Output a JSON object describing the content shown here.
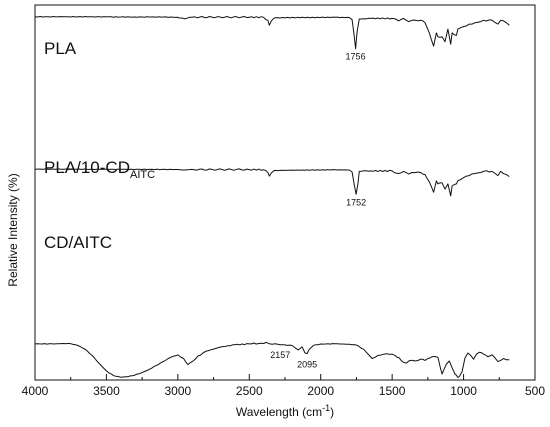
{
  "chart_data": {
    "type": "line",
    "title": "",
    "xlabel": "Wavelength (cm",
    "xlabel_sup": "-1",
    "xlabel_tail": ")",
    "ylabel": "Relative Intensity (%)",
    "xlim": [
      4000,
      500
    ],
    "x_reversed": true,
    "xticks": [
      "4000",
      "3500",
      "3000",
      "2500",
      "2000",
      "1500",
      "1000",
      "500"
    ],
    "ylim": [
      0,
      100
    ],
    "y_ticks_shown": false,
    "grid": false,
    "series": [
      {
        "name": "PLA",
        "name_sub": "",
        "label_position": "top-left",
        "points": [
          [
            4000,
            97.8
          ],
          [
            3800,
            97.8
          ],
          [
            3700,
            97.8
          ],
          [
            3600,
            97.8
          ],
          [
            3500,
            97.7
          ],
          [
            3400,
            97.6
          ],
          [
            3300,
            97.6
          ],
          [
            3200,
            97.6
          ],
          [
            3100,
            97.6
          ],
          [
            3000,
            97.4
          ],
          [
            2995,
            96.9
          ],
          [
            2950,
            96.1
          ],
          [
            2920,
            97.4
          ],
          [
            2900,
            97.5
          ],
          [
            2500,
            97.5
          ],
          [
            2400,
            97.4
          ],
          [
            2370,
            95
          ],
          [
            2360,
            91
          ],
          [
            2345,
            94.5
          ],
          [
            2330,
            96.5
          ],
          [
            2320,
            97
          ],
          [
            1900,
            97.4
          ],
          [
            1800,
            97.2
          ],
          [
            1780,
            95.5
          ],
          [
            1765,
            82
          ],
          [
            1756,
            72.5
          ],
          [
            1745,
            86
          ],
          [
            1730,
            96
          ],
          [
            1700,
            96.2
          ],
          [
            1650,
            96.5
          ],
          [
            1500,
            96.5
          ],
          [
            1455,
            94.5
          ],
          [
            1420,
            96.5
          ],
          [
            1385,
            94
          ],
          [
            1360,
            95
          ],
          [
            1300,
            95
          ],
          [
            1270,
            93
          ],
          [
            1240,
            85
          ],
          [
            1210,
            74.5
          ],
          [
            1190,
            85
          ],
          [
            1180,
            82
          ],
          [
            1150,
            82
          ],
          [
            1130,
            78
          ],
          [
            1110,
            88
          ],
          [
            1090,
            76
          ],
          [
            1080,
            85
          ],
          [
            1050,
            83
          ],
          [
            1040,
            88
          ],
          [
            1000,
            90
          ],
          [
            960,
            92
          ],
          [
            920,
            93
          ],
          [
            880,
            94
          ],
          [
            860,
            95
          ],
          [
            800,
            95
          ],
          [
            760,
            92
          ],
          [
            740,
            95
          ],
          [
            700,
            93
          ],
          [
            680,
            91
          ]
        ]
      },
      {
        "name": "PLA/10-CD",
        "name_sub": "AITC",
        "label_position": "middle-left",
        "points": [
          [
            4000,
            66.2
          ],
          [
            3800,
            66.2
          ],
          [
            3600,
            66.1
          ],
          [
            3400,
            66
          ],
          [
            3200,
            66
          ],
          [
            3000,
            65.9
          ],
          [
            2950,
            65.4
          ],
          [
            2920,
            65.8
          ],
          [
            2500,
            65.8
          ],
          [
            2400,
            65.6
          ],
          [
            2370,
            63
          ],
          [
            2360,
            59.5
          ],
          [
            2345,
            62.5
          ],
          [
            2330,
            64.5
          ],
          [
            2320,
            65
          ],
          [
            1900,
            65.6
          ],
          [
            1800,
            65.4
          ],
          [
            1780,
            63.5
          ],
          [
            1765,
            51
          ],
          [
            1752,
            42
          ],
          [
            1740,
            52
          ],
          [
            1730,
            64
          ],
          [
            1700,
            64.5
          ],
          [
            1650,
            64.5
          ],
          [
            1500,
            64.5
          ],
          [
            1455,
            62
          ],
          [
            1420,
            64
          ],
          [
            1385,
            61.5
          ],
          [
            1360,
            63
          ],
          [
            1300,
            63
          ],
          [
            1270,
            61
          ],
          [
            1240,
            54
          ],
          [
            1210,
            44
          ],
          [
            1190,
            55
          ],
          [
            1180,
            52
          ],
          [
            1150,
            53
          ],
          [
            1130,
            47
          ],
          [
            1110,
            52
          ],
          [
            1090,
            40.5
          ],
          [
            1080,
            50
          ],
          [
            1050,
            52
          ],
          [
            1040,
            55
          ],
          [
            1000,
            58
          ],
          [
            960,
            60
          ],
          [
            920,
            62
          ],
          [
            880,
            63
          ],
          [
            860,
            64
          ],
          [
            800,
            64
          ],
          [
            760,
            60
          ],
          [
            740,
            64
          ],
          [
            700,
            61
          ],
          [
            680,
            59
          ]
        ]
      },
      {
        "name": "CD/AITC",
        "name_sub": "",
        "label_position": "bottom-left",
        "points": [
          [
            4000,
            28.3
          ],
          [
            3850,
            28.4
          ],
          [
            3800,
            28.6
          ],
          [
            3750,
            28.5
          ],
          [
            3700,
            27
          ],
          [
            3650,
            24
          ],
          [
            3600,
            19
          ],
          [
            3550,
            12.5
          ],
          [
            3500,
            6.5
          ],
          [
            3450,
            2.7
          ],
          [
            3400,
            1.4
          ],
          [
            3350,
            1.8
          ],
          [
            3300,
            3.2
          ],
          [
            3250,
            5.2
          ],
          [
            3200,
            7.8
          ],
          [
            3150,
            11
          ],
          [
            3100,
            14.2
          ],
          [
            3050,
            17.5
          ],
          [
            3000,
            19.4
          ],
          [
            2960,
            16.5
          ],
          [
            2930,
            11.6
          ],
          [
            2900,
            14
          ],
          [
            2860,
            18.5
          ],
          [
            2800,
            22.5
          ],
          [
            2700,
            25.8
          ],
          [
            2600,
            27.6
          ],
          [
            2500,
            28.3
          ],
          [
            2420,
            28.8
          ],
          [
            2380,
            29.5
          ],
          [
            2360,
            28.5
          ],
          [
            2340,
            28
          ],
          [
            2300,
            28
          ],
          [
            2250,
            27.5
          ],
          [
            2200,
            27
          ],
          [
            2157,
            23.5
          ],
          [
            2130,
            26
          ],
          [
            2110,
            21
          ],
          [
            2095,
            20.5
          ],
          [
            2080,
            24
          ],
          [
            2050,
            27.2
          ],
          [
            2000,
            28.2
          ],
          [
            1900,
            28.4
          ],
          [
            1800,
            28
          ],
          [
            1750,
            27.3
          ],
          [
            1700,
            24
          ],
          [
            1660,
            19
          ],
          [
            1640,
            16.5
          ],
          [
            1620,
            17.5
          ],
          [
            1600,
            19
          ],
          [
            1560,
            20
          ],
          [
            1520,
            20
          ],
          [
            1480,
            19
          ],
          [
            1450,
            17
          ],
          [
            1420,
            13.5
          ],
          [
            1400,
            12.8
          ],
          [
            1370,
            15
          ],
          [
            1340,
            14.5
          ],
          [
            1300,
            16
          ],
          [
            1270,
            15
          ],
          [
            1250,
            16.5
          ],
          [
            1220,
            18
          ],
          [
            1180,
            17.5
          ],
          [
            1160,
            8
          ],
          [
            1150,
            4
          ],
          [
            1140,
            7
          ],
          [
            1120,
            12
          ],
          [
            1100,
            14.5
          ],
          [
            1080,
            9
          ],
          [
            1060,
            4
          ],
          [
            1050,
            3
          ],
          [
            1040,
            1.2
          ],
          [
            1030,
            2
          ],
          [
            1010,
            6
          ],
          [
            990,
            17
          ],
          [
            970,
            21
          ],
          [
            950,
            19
          ],
          [
            930,
            16
          ],
          [
            910,
            20
          ],
          [
            890,
            21.5
          ],
          [
            860,
            20
          ],
          [
            830,
            18
          ],
          [
            800,
            19.5
          ],
          [
            780,
            17
          ],
          [
            760,
            14
          ],
          [
            740,
            15
          ],
          [
            720,
            16.5
          ],
          [
            700,
            15.5
          ],
          [
            680,
            15.5
          ]
        ]
      }
    ],
    "annotations": [
      {
        "text": "1756",
        "x": 1756,
        "series": 0
      },
      {
        "text": "1752",
        "x": 1752,
        "series": 1
      },
      {
        "text": "2157",
        "x": 2157,
        "series": 2
      },
      {
        "text": "2095",
        "x": 2095,
        "series": 2
      }
    ]
  }
}
